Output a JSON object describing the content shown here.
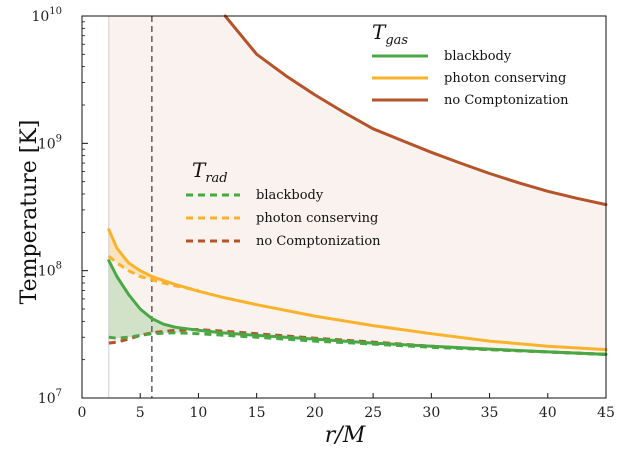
{
  "chart_data": {
    "type": "line",
    "xlabel": "r/M",
    "ylabel": "Temperature [K]",
    "xlim": [
      0,
      45
    ],
    "ylim": [
      10000000.0,
      10000000000.0
    ],
    "yscale": "log",
    "grid": false,
    "x_ticks": [
      "0",
      "5",
      "10",
      "15",
      "20",
      "25",
      "30",
      "35",
      "40",
      "45"
    ],
    "y_ticks": [
      {
        "base": "10",
        "exp": "7"
      },
      {
        "base": "10",
        "exp": "8"
      },
      {
        "base": "10",
        "exp": "9"
      },
      {
        "base": "10",
        "exp": "10"
      }
    ],
    "vline_x": 6,
    "legend_gas": {
      "title_main": "T",
      "title_sub": "gas",
      "entries": [
        "blackbody",
        "photon conserving",
        "no Comptonization"
      ]
    },
    "legend_rad": {
      "title_main": "T",
      "title_sub": "rad",
      "entries": [
        "blackbody",
        "photon conserving",
        "no Comptonization"
      ]
    },
    "colors": {
      "blackbody": "#4aa844",
      "photon": "#fbb22b",
      "nocomp": "#b5532b",
      "vline": "#555555"
    },
    "series": [
      {
        "key": "gas_blackbody",
        "style": "solid",
        "color_key": "blackbody",
        "x": [
          2.3,
          3,
          4,
          5,
          6,
          7,
          8,
          10,
          12,
          15,
          20,
          25,
          30,
          35,
          40,
          45
        ],
        "y": [
          120000000.0,
          90000000.0,
          65000000.0,
          50000000.0,
          42000000.0,
          38000000.0,
          36000000.0,
          34000000.0,
          32500000.0,
          31000000.0,
          29000000.0,
          27000000.0,
          25500000.0,
          24200000.0,
          23000000.0,
          22000000.0
        ]
      },
      {
        "key": "gas_photon",
        "style": "solid",
        "color_key": "photon",
        "x": [
          2.3,
          3,
          4,
          5,
          6,
          8,
          10,
          12,
          15,
          20,
          25,
          30,
          35,
          40,
          45
        ],
        "y": [
          210000000.0,
          150000000.0,
          115000000.0,
          100000000.0,
          90000000.0,
          78000000.0,
          69000000.0,
          62000000.0,
          54000000.0,
          44000000.0,
          37000000.0,
          32000000.0,
          28000000.0,
          25500000.0,
          24000000.0
        ]
      },
      {
        "key": "gas_nocomp",
        "style": "solid",
        "color_key": "nocomp",
        "x": [
          12.3,
          15,
          17.5,
          20,
          22.5,
          25,
          27.5,
          30,
          32.5,
          35,
          37.5,
          40,
          42.5,
          45
        ],
        "y": [
          10000000000.0,
          5000000000.0,
          3400000000.0,
          2400000000.0,
          1750000000.0,
          1300000000.0,
          1050000000.0,
          850000000.0,
          700000000.0,
          580000000.0,
          490000000.0,
          420000000.0,
          370000000.0,
          330000000.0
        ]
      },
      {
        "key": "rad_blackbody",
        "style": "dashed",
        "color_key": "blackbody",
        "x": [
          2.3,
          3,
          4,
          5,
          6,
          8,
          10,
          15,
          20,
          25,
          30,
          35,
          40,
          45
        ],
        "y": [
          30000000.0,
          29500000.0,
          30000000.0,
          31000000.0,
          32000000.0,
          32500000.0,
          32000000.0,
          30000000.0,
          28000000.0,
          26500000.0,
          25000000.0,
          24000000.0,
          23000000.0,
          22000000.0
        ]
      },
      {
        "key": "rad_photon",
        "style": "dashed",
        "color_key": "photon",
        "x": [
          2.3,
          3,
          4,
          5,
          6,
          7,
          8,
          10
        ],
        "y": [
          130000000.0,
          115000000.0,
          100000000.0,
          90000000.0,
          85000000.0,
          80000000.0,
          76000000.0,
          70000000.0
        ]
      },
      {
        "key": "rad_nocomp",
        "style": "dashed",
        "color_key": "nocomp",
        "x": [
          2.3,
          3,
          4,
          5,
          6,
          8,
          10,
          12,
          15,
          20,
          25,
          30,
          35,
          40,
          45
        ],
        "y": [
          27000000.0,
          27500000.0,
          29000000.0,
          31000000.0,
          32500000.0,
          34000000.0,
          34500000.0,
          33500000.0,
          32000000.0,
          29500000.0,
          27500000.0,
          25500000.0,
          24000000.0,
          23000000.0,
          22000000.0
        ]
      }
    ]
  }
}
